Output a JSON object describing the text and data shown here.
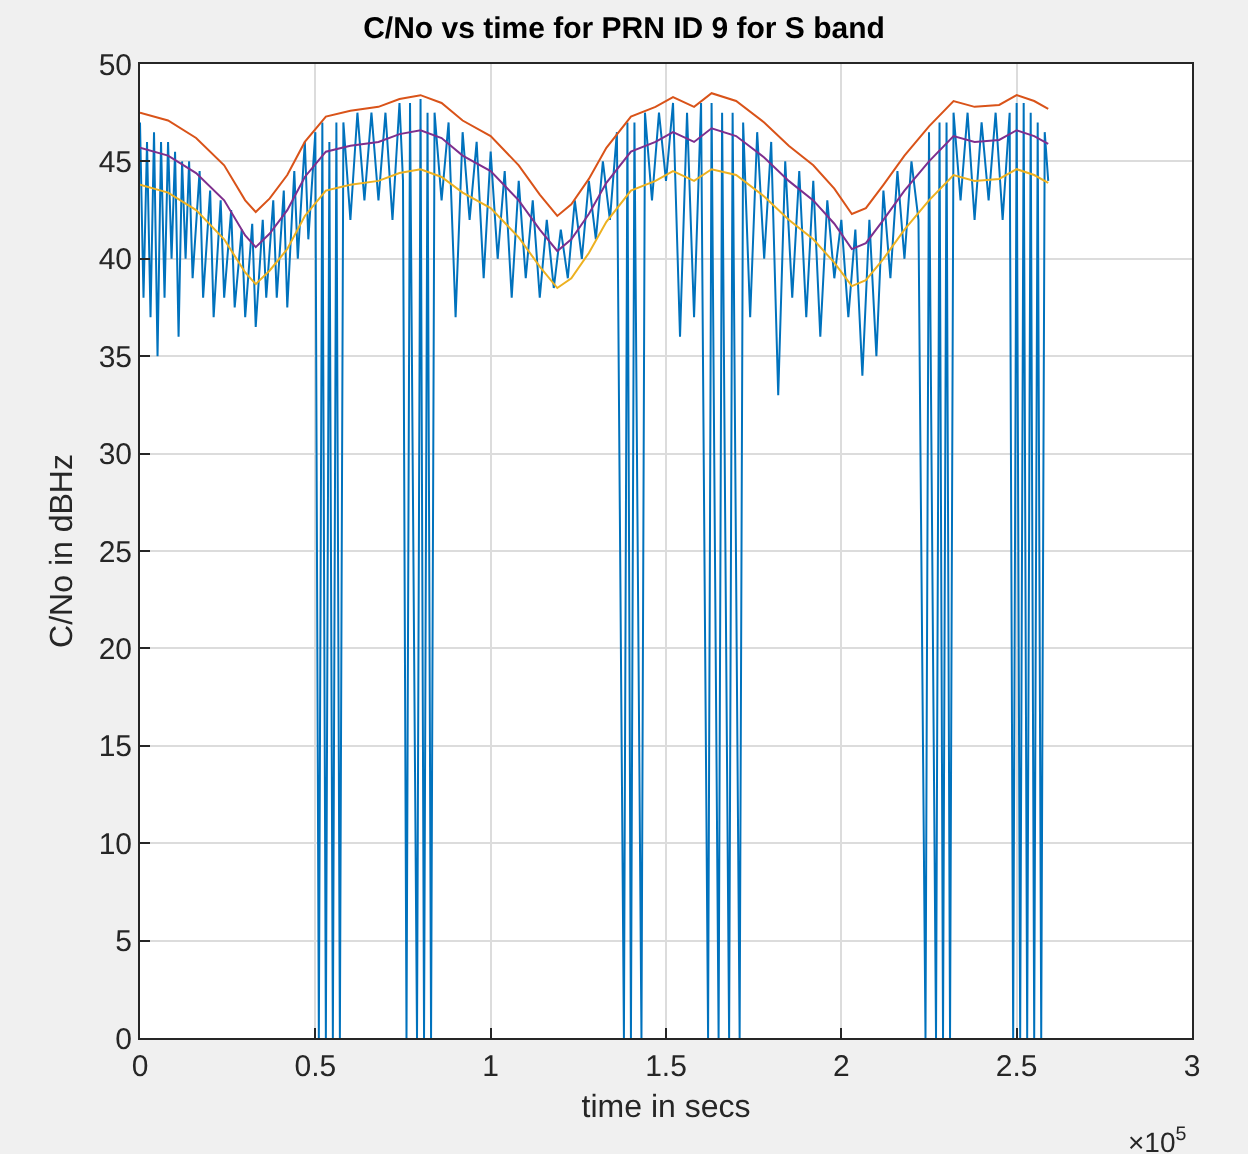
{
  "chart_data": {
    "type": "line",
    "title": "C/No vs time for PRN ID 9 for S band",
    "xlabel": "time in secs",
    "ylabel": "C/No in dBHz",
    "annotations": [
      "×10$^{5}$"
    ],
    "xlim": [
      0,
      3
    ],
    "xticks": [
      0,
      0.5,
      1,
      1.5,
      2,
      2.5,
      3
    ],
    "ylim": [
      0,
      50
    ],
    "yticks": [
      0,
      5,
      10,
      15,
      20,
      25,
      30,
      35,
      40,
      45,
      50
    ],
    "grid": true,
    "marker": "none",
    "line_style": "solid",
    "series": [
      {
        "color": "#0072bd",
        "x": [
          0,
          0.01,
          0.02,
          0.03,
          0.04,
          0.05,
          0.06,
          0.07,
          0.08,
          0.09,
          0.1,
          0.11,
          0.12,
          0.13,
          0.14,
          0.15,
          0.17,
          0.18,
          0.2,
          0.21,
          0.23,
          0.24,
          0.26,
          0.27,
          0.29,
          0.3,
          0.32,
          0.33,
          0.35,
          0.36,
          0.38,
          0.39,
          0.41,
          0.42,
          0.44,
          0.45,
          0.47,
          0.48,
          0.5,
          0.51,
          0.52,
          0.53,
          0.54,
          0.55,
          0.56,
          0.57,
          0.58,
          0.6,
          0.62,
          0.64,
          0.66,
          0.68,
          0.7,
          0.72,
          0.74,
          0.75,
          0.76,
          0.77,
          0.79,
          0.8,
          0.81,
          0.82,
          0.83,
          0.84,
          0.86,
          0.88,
          0.9,
          0.92,
          0.94,
          0.96,
          0.98,
          1.0,
          1.02,
          1.04,
          1.06,
          1.08,
          1.1,
          1.12,
          1.14,
          1.16,
          1.18,
          1.2,
          1.22,
          1.24,
          1.26,
          1.28,
          1.3,
          1.32,
          1.34,
          1.36,
          1.38,
          1.39,
          1.4,
          1.41,
          1.43,
          1.44,
          1.46,
          1.48,
          1.5,
          1.52,
          1.54,
          1.56,
          1.58,
          1.6,
          1.62,
          1.63,
          1.65,
          1.66,
          1.68,
          1.69,
          1.71,
          1.72,
          1.74,
          1.76,
          1.78,
          1.8,
          1.82,
          1.84,
          1.86,
          1.88,
          1.9,
          1.92,
          1.94,
          1.96,
          1.98,
          2.0,
          2.02,
          2.04,
          2.06,
          2.08,
          2.1,
          2.12,
          2.14,
          2.16,
          2.18,
          2.2,
          2.22,
          2.24,
          2.25,
          2.27,
          2.28,
          2.29,
          2.3,
          2.31,
          2.32,
          2.34,
          2.36,
          2.38,
          2.4,
          2.42,
          2.44,
          2.46,
          2.48,
          2.49,
          2.5,
          2.51,
          2.52,
          2.53,
          2.54,
          2.55,
          2.56,
          2.57,
          2.58,
          2.59
        ],
        "values": [
          47,
          38,
          46,
          37,
          46.5,
          35,
          46,
          38,
          46,
          40,
          45.5,
          36,
          45,
          40,
          45,
          39,
          44.5,
          38,
          43.5,
          37,
          43,
          38,
          42.5,
          37.5,
          41.5,
          37,
          41.8,
          36.5,
          42,
          38,
          43,
          38,
          43.5,
          37.5,
          44.5,
          40,
          46,
          41,
          46.5,
          0,
          47,
          0,
          46,
          0,
          47,
          0,
          47,
          42,
          47.5,
          43,
          47.5,
          43,
          47.5,
          42,
          48,
          44,
          0,
          48,
          0,
          48.2,
          0,
          47.5,
          0,
          47.5,
          43,
          47,
          37,
          46.5,
          42,
          46,
          39,
          45.5,
          40,
          44.5,
          38,
          44,
          39,
          43,
          38,
          42,
          38.5,
          41.5,
          39,
          43,
          40,
          44,
          41,
          45,
          42,
          46.5,
          0,
          47,
          0,
          47,
          0,
          47.5,
          43,
          47.5,
          44,
          48,
          36,
          47.5,
          37,
          48,
          0,
          48,
          0,
          47.5,
          0,
          47.5,
          0,
          47,
          37,
          46.5,
          40,
          46,
          33,
          45,
          38,
          44.5,
          37,
          44,
          36,
          43,
          39,
          42,
          37,
          41.5,
          34,
          42,
          35,
          43.5,
          39,
          44.5,
          40,
          45,
          42,
          0,
          46.5,
          0,
          47,
          0,
          47,
          0,
          47.5,
          43,
          47.5,
          42,
          47,
          43,
          47.5,
          42,
          47.5,
          0,
          48,
          0,
          48,
          0,
          47.5,
          0,
          47,
          0,
          46.5,
          44
        ]
      },
      {
        "color": "#d95319",
        "x": [
          0,
          0.08,
          0.16,
          0.24,
          0.3,
          0.33,
          0.37,
          0.42,
          0.47,
          0.53,
          0.6,
          0.68,
          0.74,
          0.8,
          0.86,
          0.92,
          1.0,
          1.08,
          1.14,
          1.19,
          1.23,
          1.28,
          1.33,
          1.4,
          1.47,
          1.52,
          1.58,
          1.63,
          1.7,
          1.78,
          1.85,
          1.92,
          1.98,
          2.03,
          2.07,
          2.12,
          2.18,
          2.25,
          2.32,
          2.38,
          2.45,
          2.5,
          2.55,
          2.59
        ],
        "values": [
          47.5,
          47.1,
          46.2,
          44.8,
          43,
          42.4,
          43.1,
          44.3,
          46,
          47.3,
          47.6,
          47.8,
          48.2,
          48.4,
          48,
          47.1,
          46.3,
          44.8,
          43.3,
          42.2,
          42.8,
          44.1,
          45.7,
          47.3,
          47.8,
          48.3,
          47.8,
          48.5,
          48.1,
          47,
          45.8,
          44.8,
          43.6,
          42.3,
          42.6,
          43.8,
          45.3,
          46.8,
          48.1,
          47.8,
          47.9,
          48.4,
          48.1,
          47.7
        ]
      },
      {
        "color": "#7e2f8e",
        "x": [
          0,
          0.08,
          0.16,
          0.24,
          0.3,
          0.33,
          0.37,
          0.42,
          0.47,
          0.53,
          0.6,
          0.68,
          0.74,
          0.8,
          0.86,
          0.92,
          1.0,
          1.08,
          1.14,
          1.19,
          1.23,
          1.28,
          1.33,
          1.4,
          1.47,
          1.52,
          1.58,
          1.63,
          1.7,
          1.78,
          1.85,
          1.92,
          1.98,
          2.03,
          2.07,
          2.12,
          2.18,
          2.25,
          2.32,
          2.38,
          2.45,
          2.5,
          2.55,
          2.59
        ],
        "values": [
          45.7,
          45.3,
          44.4,
          43,
          41.2,
          40.6,
          41.3,
          42.5,
          44.2,
          45.5,
          45.8,
          46,
          46.4,
          46.6,
          46.2,
          45.3,
          44.5,
          43,
          41.5,
          40.4,
          41,
          42.3,
          43.9,
          45.5,
          46,
          46.5,
          46,
          46.7,
          46.3,
          45.2,
          44,
          43,
          41.8,
          40.5,
          40.8,
          42,
          43.5,
          45,
          46.3,
          46,
          46.1,
          46.6,
          46.3,
          45.9
        ]
      },
      {
        "color": "#edb120",
        "x": [
          0,
          0.08,
          0.16,
          0.24,
          0.3,
          0.33,
          0.37,
          0.42,
          0.47,
          0.53,
          0.6,
          0.68,
          0.74,
          0.8,
          0.86,
          0.92,
          1.0,
          1.08,
          1.14,
          1.19,
          1.23,
          1.28,
          1.33,
          1.4,
          1.47,
          1.52,
          1.58,
          1.63,
          1.7,
          1.78,
          1.85,
          1.92,
          1.98,
          2.03,
          2.07,
          2.12,
          2.18,
          2.25,
          2.32,
          2.38,
          2.45,
          2.5,
          2.55,
          2.59
        ],
        "values": [
          43.8,
          43.4,
          42.5,
          41,
          39.3,
          38.7,
          39.4,
          40.5,
          42.2,
          43.5,
          43.8,
          44,
          44.4,
          44.6,
          44.2,
          43.4,
          42.6,
          41.1,
          39.6,
          38.5,
          39,
          40.3,
          41.9,
          43.5,
          44,
          44.5,
          44,
          44.6,
          44.3,
          43.2,
          42,
          41,
          39.8,
          38.6,
          38.9,
          40,
          41.5,
          43,
          44.3,
          44,
          44.1,
          44.6,
          44.3,
          43.9
        ]
      }
    ]
  }
}
